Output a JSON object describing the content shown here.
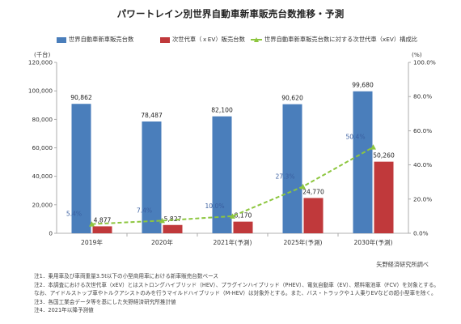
{
  "title": "パワートレイン別世界自動車新車販売台数推移・予測",
  "source": "矢野経済研究所調べ",
  "notes": [
    "注1．乗用車及び車両重量3.5t以下の小型商用車における新車販売台数ベース",
    "注2．本調査における次世代車（xEV）とはストロングハイブリッド（HEV）、プラグインハイブリッド（PHEV）、電気自動車（EV）、燃料電池車（FCV）を対象とする。",
    "なお、アイドルストップ車やトルクアシストのみを行うマイルドハイブリッド（M-HEV）は対象外とする。また、バス・トラックや１人乗りEVなどの超小型車を除く。",
    "注3．各国工業会データ等を基にした矢野経済研究所推計値",
    "注4．2021年以降予測値"
  ],
  "colors": {
    "total": "#4a7ebb",
    "xev": "#c0393b",
    "ratio": "#8dc63f",
    "ratio_label": "#3a5fa0"
  },
  "chart_data": {
    "type": "bar",
    "categories": [
      "2019年",
      "2020年",
      "2021年(予測)",
      "2025年(予測)",
      "2030年(予測)"
    ],
    "series": [
      {
        "name": "世界自動車新車販売台数",
        "type": "bar",
        "axis": "left",
        "values": [
          90862,
          78487,
          82100,
          90620,
          99680
        ],
        "labels": [
          "90,862",
          "78,487",
          "82,100",
          "90,620",
          "99,680"
        ]
      },
      {
        "name": "次世代車（ｘEV）販売台数",
        "type": "bar",
        "axis": "left",
        "values": [
          4877,
          5827,
          8170,
          24770,
          50260
        ],
        "labels": [
          "4,877",
          "5,827",
          "8,170",
          "24,770",
          "50,260"
        ]
      },
      {
        "name": "世界自動車新車販売台数に対する次世代車（xEV）構成比",
        "type": "line",
        "axis": "right",
        "values": [
          5.4,
          7.4,
          10.0,
          27.3,
          50.4
        ],
        "labels": [
          "5.4%",
          "7.4%",
          "10.0%",
          "27.3%",
          "50.4%"
        ]
      }
    ],
    "y_left": {
      "unit": "(千台)",
      "range": [
        0,
        120000
      ],
      "ticks": [
        "0",
        "20,000",
        "40,000",
        "60,000",
        "80,000",
        "100,000",
        "120,000"
      ]
    },
    "y_right": {
      "unit": "(%)",
      "range": [
        0,
        100
      ],
      "ticks": [
        "0.0%",
        "20.0%",
        "40.0%",
        "60.0%",
        "80.0%",
        "100.0%"
      ]
    },
    "grid": false,
    "legend": "top"
  }
}
